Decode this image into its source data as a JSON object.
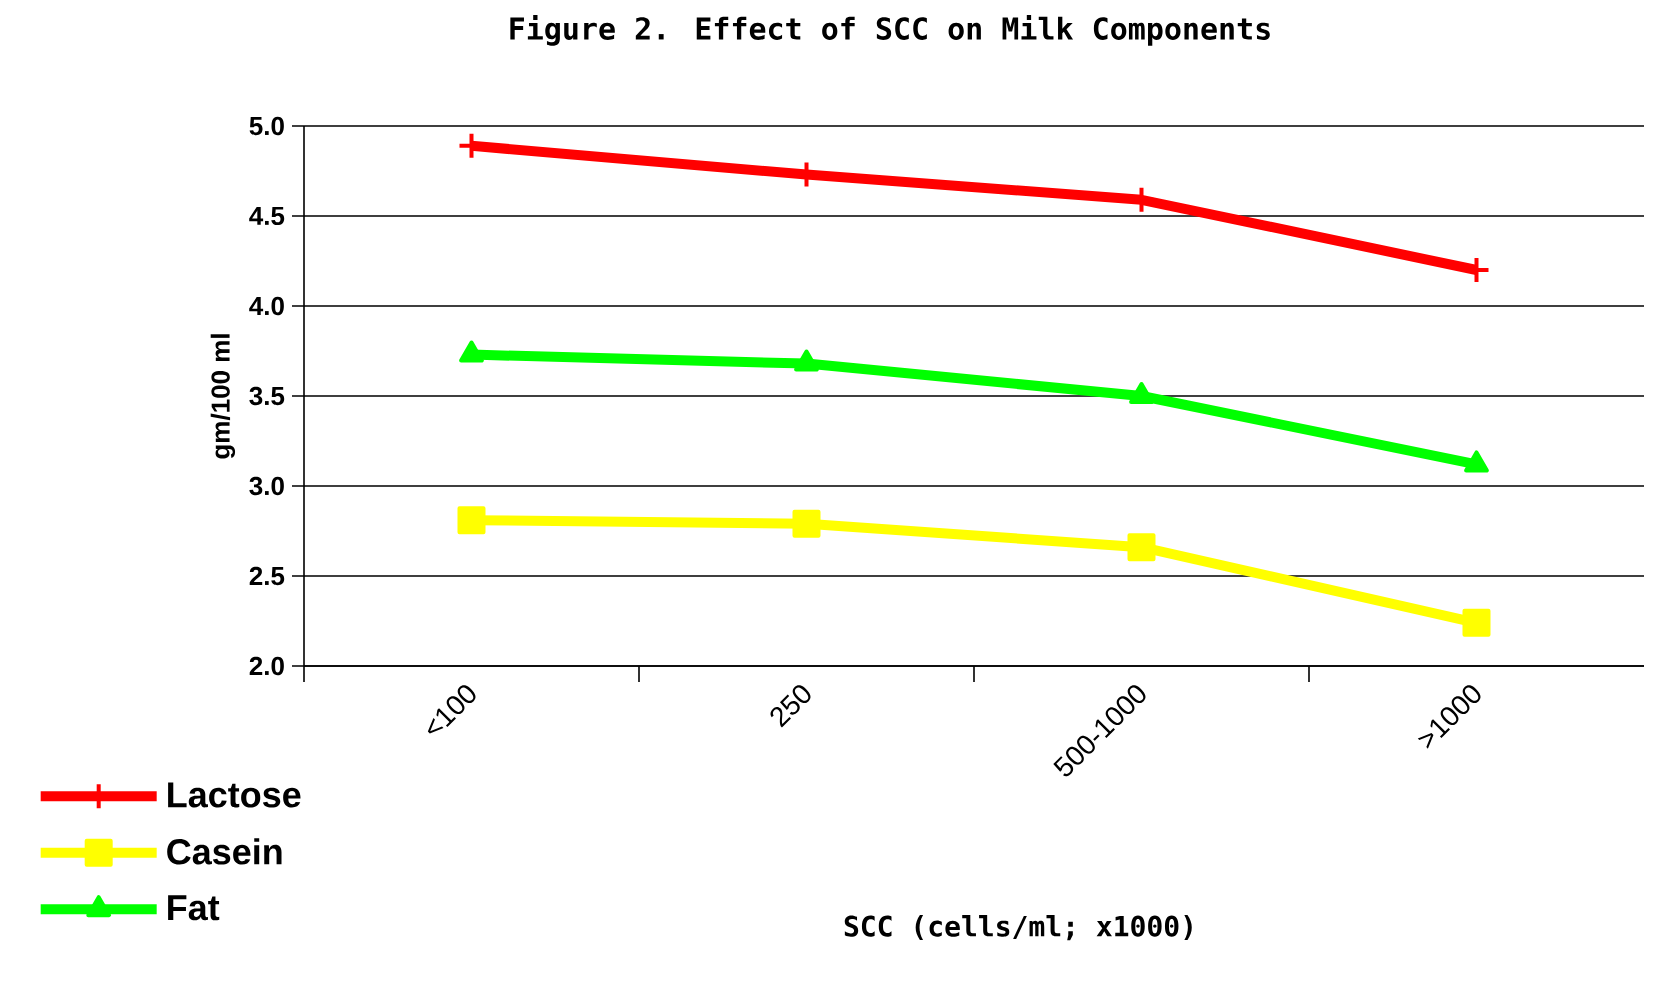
{
  "chart_data": {
    "type": "line",
    "title": "Figure 2.  Effect of SCC on Milk Components",
    "xlabel": "SCC (cells/ml; x1000)",
    "ylabel": "gm/100 ml",
    "categories": [
      "<100",
      "250",
      "500-1000",
      ">1000"
    ],
    "series": [
      {
        "name": "Lactose",
        "color": "#ff0000",
        "marker": "cross",
        "values": [
          4.89,
          4.73,
          4.59,
          4.2
        ]
      },
      {
        "name": "Casein",
        "color": "#ffff00",
        "marker": "square",
        "values": [
          2.81,
          2.79,
          2.66,
          2.24
        ]
      },
      {
        "name": "Fat",
        "color": "#00ff00",
        "marker": "triangle",
        "values": [
          3.73,
          3.68,
          3.5,
          3.12
        ]
      }
    ],
    "ylim": [
      2,
      5
    ],
    "yticks": [
      {
        "value": 2,
        "label": "2.0"
      },
      {
        "value": 2.5,
        "label": "2.5"
      },
      {
        "value": 3,
        "label": "3.0"
      },
      {
        "value": 3.5,
        "label": "3.5"
      },
      {
        "value": 4,
        "label": "4.0"
      },
      {
        "value": 4.5,
        "label": "4.5"
      },
      {
        "value": 5,
        "label": "5.0"
      }
    ],
    "grid": "y",
    "legend": "bottom left",
    "line_style": "solid"
  }
}
